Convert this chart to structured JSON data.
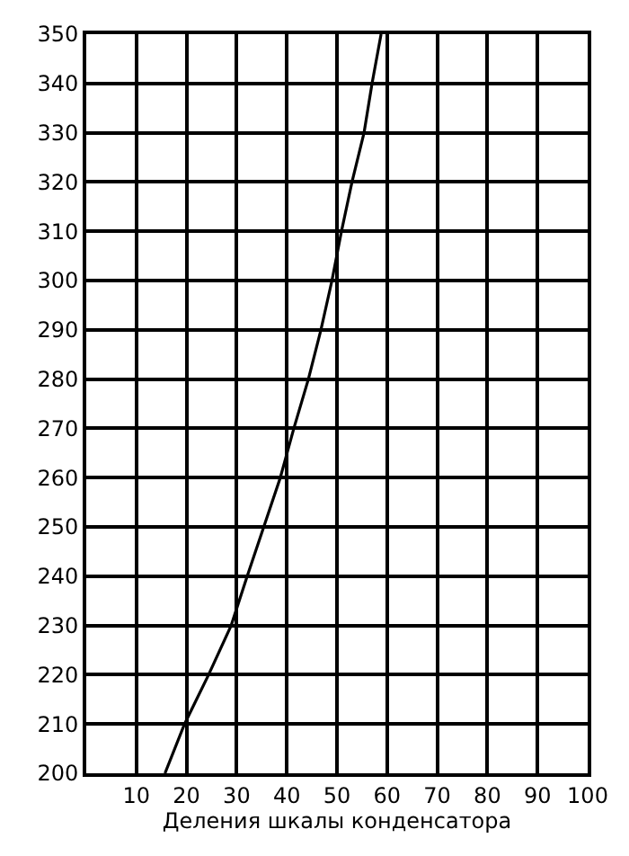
{
  "chart_data": {
    "type": "line",
    "xlabel": "Деления шкалы конденсатора",
    "series": [
      {
        "color": "#000000",
        "x": [
          15.7,
          19.6,
          24.4,
          28.9,
          32.1,
          35.4,
          38.7,
          41.4,
          44.3,
          46.8,
          49.0,
          50.9,
          53.0,
          55.4,
          57.0,
          58.8
        ],
        "values": [
          200,
          210,
          220,
          230,
          240,
          250,
          260,
          270,
          280,
          290,
          300,
          310,
          320,
          330,
          340,
          350
        ]
      }
    ],
    "xlim": [
      0,
      100
    ],
    "xticks": [
      {
        "value": 0,
        "label": null
      },
      10,
      20,
      30,
      40,
      50,
      60,
      70,
      80,
      90,
      100
    ],
    "ylim": [
      200,
      350
    ],
    "yticks": [
      200,
      210,
      220,
      230,
      240,
      250,
      260,
      270,
      280,
      290,
      300,
      310,
      320,
      330,
      340,
      350
    ],
    "grid": true,
    "marker": "none",
    "line_style": "solid"
  }
}
